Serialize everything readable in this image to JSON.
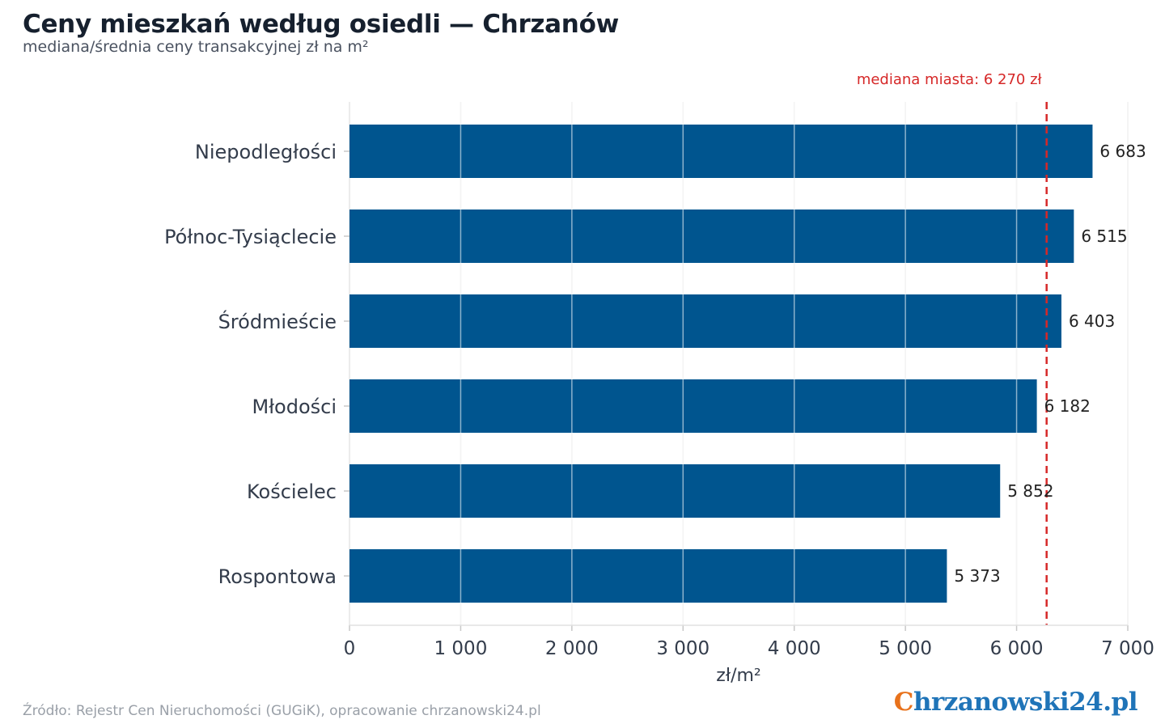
{
  "title": "Ceny mieszkań według osiedli — Chrzanów",
  "subtitle": "mediana/średnia ceny transakcyjnej zł na m²",
  "source": "Źródło: Rejestr Cen Nieruchomości (GUGiK), opracowanie chrzanowski24.pl",
  "logo": {
    "first_letter": "C",
    "rest": "hrzanowski24.pl"
  },
  "colors": {
    "bar": "#00558f",
    "reference": "#d62828",
    "grid": "#e6e6e6",
    "logo_orange": "#e8721c",
    "logo_blue": "#1f74b8"
  },
  "chart_data": {
    "type": "bar",
    "orientation": "horizontal",
    "categories": [
      "Niepodległości",
      "Północ-Tysiąclecie",
      "Śródmieście",
      "Młodości",
      "Kościelec",
      "Rospontowa"
    ],
    "values": [
      6683,
      6515,
      6403,
      6182,
      5852,
      5373
    ],
    "value_labels": [
      "6 683",
      "6 515",
      "6 403",
      "6 182",
      "5 852",
      "5 373"
    ],
    "xlabel": "zł/m²",
    "xlim": [
      0,
      7000
    ],
    "xticks": [
      0,
      1000,
      2000,
      3000,
      4000,
      5000,
      6000,
      7000
    ],
    "xtick_labels": [
      "0",
      "1 000",
      "2 000",
      "3 000",
      "4 000",
      "5 000",
      "6 000",
      "7 000"
    ],
    "grid": "vertical",
    "reference_line": {
      "value": 6270,
      "label": "mediana miasta: 6 270 zł"
    }
  }
}
